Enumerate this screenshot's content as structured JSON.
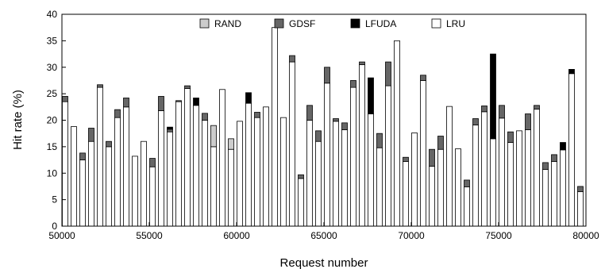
{
  "chart_data": {
    "type": "bar",
    "stacked": true,
    "xlabel": "Request number",
    "ylabel": "Hit rate (%)",
    "xlim": [
      50000,
      80000
    ],
    "ylim": [
      0,
      40
    ],
    "xticks": [
      50000,
      55000,
      60000,
      65000,
      70000,
      75000,
      80000
    ],
    "yticks": [
      0,
      5,
      10,
      15,
      20,
      25,
      30,
      35,
      40
    ],
    "grid": false,
    "legend_position": "top-center",
    "legend": [
      {
        "name": "RAND",
        "color": "#cccccc"
      },
      {
        "name": "GDSF",
        "color": "#666666"
      },
      {
        "name": "LFUDA",
        "color": "#000000"
      },
      {
        "name": "LRU",
        "color": "#ffffff"
      }
    ],
    "bars": [
      {
        "x": 50000,
        "values": [
          {
            "series": "LRU",
            "value": 23.5
          },
          {
            "series": "GDSF",
            "value": 24.5
          }
        ]
      },
      {
        "x": 50500,
        "values": [
          {
            "series": "LRU",
            "value": 18.8
          }
        ]
      },
      {
        "x": 51000,
        "values": [
          {
            "series": "LRU",
            "value": 12.5
          },
          {
            "series": "GDSF",
            "value": 13.8
          }
        ]
      },
      {
        "x": 51500,
        "values": [
          {
            "series": "LRU",
            "value": 16.0
          },
          {
            "series": "GDSF",
            "value": 18.5
          }
        ]
      },
      {
        "x": 52000,
        "values": [
          {
            "series": "LRU",
            "value": 26.2
          },
          {
            "series": "GDSF",
            "value": 26.7
          }
        ]
      },
      {
        "x": 52500,
        "values": [
          {
            "series": "LRU",
            "value": 15.0
          },
          {
            "series": "GDSF",
            "value": 16.0
          }
        ]
      },
      {
        "x": 53000,
        "values": [
          {
            "series": "LRU",
            "value": 20.5
          },
          {
            "series": "GDSF",
            "value": 22.0
          }
        ]
      },
      {
        "x": 53500,
        "values": [
          {
            "series": "LRU",
            "value": 22.5
          },
          {
            "series": "GDSF",
            "value": 24.2
          }
        ]
      },
      {
        "x": 54000,
        "values": [
          {
            "series": "LRU",
            "value": 13.2
          }
        ]
      },
      {
        "x": 54500,
        "values": [
          {
            "series": "LRU",
            "value": 16.0
          }
        ]
      },
      {
        "x": 55000,
        "values": [
          {
            "series": "LRU",
            "value": 11.2
          },
          {
            "series": "GDSF",
            "value": 12.8
          }
        ]
      },
      {
        "x": 55500,
        "values": [
          {
            "series": "LRU",
            "value": 21.8
          },
          {
            "series": "GDSF",
            "value": 24.5
          }
        ]
      },
      {
        "x": 56000,
        "values": [
          {
            "series": "LRU",
            "value": 17.8
          },
          {
            "series": "GDSF",
            "value": 18.3
          },
          {
            "series": "LFUDA",
            "value": 18.7
          }
        ]
      },
      {
        "x": 56500,
        "values": [
          {
            "series": "LRU",
            "value": 23.5
          },
          {
            "series": "GDSF",
            "value": 23.7
          }
        ]
      },
      {
        "x": 57000,
        "values": [
          {
            "series": "LRU",
            "value": 26.0
          },
          {
            "series": "GDSF",
            "value": 26.5
          }
        ]
      },
      {
        "x": 57500,
        "values": [
          {
            "series": "LRU",
            "value": 22.8
          },
          {
            "series": "LFUDA",
            "value": 24.2
          }
        ]
      },
      {
        "x": 58000,
        "values": [
          {
            "series": "LRU",
            "value": 20.0
          },
          {
            "series": "GDSF",
            "value": 21.3
          }
        ]
      },
      {
        "x": 58500,
        "values": [
          {
            "series": "LRU",
            "value": 15.0
          },
          {
            "series": "RAND",
            "value": 19.0
          }
        ]
      },
      {
        "x": 59000,
        "values": [
          {
            "series": "LRU",
            "value": 25.8
          }
        ]
      },
      {
        "x": 59500,
        "values": [
          {
            "series": "LRU",
            "value": 14.5
          },
          {
            "series": "RAND",
            "value": 16.5
          }
        ]
      },
      {
        "x": 60000,
        "values": [
          {
            "series": "LRU",
            "value": 19.8
          }
        ]
      },
      {
        "x": 60500,
        "values": [
          {
            "series": "LRU",
            "value": 23.2
          },
          {
            "series": "LFUDA",
            "value": 25.2
          }
        ]
      },
      {
        "x": 61000,
        "values": [
          {
            "series": "LRU",
            "value": 20.5
          },
          {
            "series": "GDSF",
            "value": 21.5
          }
        ]
      },
      {
        "x": 61500,
        "values": [
          {
            "series": "LRU",
            "value": 22.5
          }
        ]
      },
      {
        "x": 62000,
        "values": [
          {
            "series": "LRU",
            "value": 37.5
          }
        ]
      },
      {
        "x": 62500,
        "values": [
          {
            "series": "LRU",
            "value": 20.5
          }
        ]
      },
      {
        "x": 63000,
        "values": [
          {
            "series": "LRU",
            "value": 31.0
          },
          {
            "series": "GDSF",
            "value": 32.2
          }
        ]
      },
      {
        "x": 63500,
        "values": [
          {
            "series": "LRU",
            "value": 9.0
          },
          {
            "series": "GDSF",
            "value": 9.7
          }
        ]
      },
      {
        "x": 64000,
        "values": [
          {
            "series": "LRU",
            "value": 20.0
          },
          {
            "series": "GDSF",
            "value": 22.8
          }
        ]
      },
      {
        "x": 64500,
        "values": [
          {
            "series": "LRU",
            "value": 16.0
          },
          {
            "series": "GDSF",
            "value": 18.0
          }
        ]
      },
      {
        "x": 65000,
        "values": [
          {
            "series": "LRU",
            "value": 27.0
          },
          {
            "series": "GDSF",
            "value": 30.0
          }
        ]
      },
      {
        "x": 65500,
        "values": [
          {
            "series": "LRU",
            "value": 19.8
          },
          {
            "series": "GDSF",
            "value": 20.3
          }
        ]
      },
      {
        "x": 66000,
        "values": [
          {
            "series": "LRU",
            "value": 18.2
          },
          {
            "series": "GDSF",
            "value": 19.5
          }
        ]
      },
      {
        "x": 66500,
        "values": [
          {
            "series": "LRU",
            "value": 26.2
          },
          {
            "series": "GDSF",
            "value": 27.5
          }
        ]
      },
      {
        "x": 67000,
        "values": [
          {
            "series": "LRU",
            "value": 30.5
          },
          {
            "series": "GDSF",
            "value": 31.0
          }
        ]
      },
      {
        "x": 67500,
        "values": [
          {
            "series": "LRU",
            "value": 21.2
          },
          {
            "series": "LFUDA",
            "value": 28.0
          }
        ]
      },
      {
        "x": 68000,
        "values": [
          {
            "series": "LRU",
            "value": 14.8
          },
          {
            "series": "GDSF",
            "value": 17.5
          }
        ]
      },
      {
        "x": 68500,
        "values": [
          {
            "series": "LRU",
            "value": 26.5
          },
          {
            "series": "GDSF",
            "value": 31.0
          }
        ]
      },
      {
        "x": 69000,
        "values": [
          {
            "series": "LRU",
            "value": 35.0
          }
        ]
      },
      {
        "x": 69500,
        "values": [
          {
            "series": "LRU",
            "value": 12.2
          },
          {
            "series": "GDSF",
            "value": 13.0
          }
        ]
      },
      {
        "x": 70000,
        "values": [
          {
            "series": "LRU",
            "value": 17.6
          }
        ]
      },
      {
        "x": 70500,
        "values": [
          {
            "series": "LRU",
            "value": 27.5
          },
          {
            "series": "GDSF",
            "value": 28.5
          }
        ]
      },
      {
        "x": 71000,
        "values": [
          {
            "series": "LRU",
            "value": 11.3
          },
          {
            "series": "GDSF",
            "value": 14.5
          }
        ]
      },
      {
        "x": 71500,
        "values": [
          {
            "series": "LRU",
            "value": 14.5
          },
          {
            "series": "GDSF",
            "value": 17.0
          }
        ]
      },
      {
        "x": 72000,
        "values": [
          {
            "series": "LRU",
            "value": 22.6
          }
        ]
      },
      {
        "x": 72500,
        "values": [
          {
            "series": "LRU",
            "value": 14.6
          }
        ]
      },
      {
        "x": 73000,
        "values": [
          {
            "series": "LRU",
            "value": 7.4
          },
          {
            "series": "GDSF",
            "value": 8.7
          }
        ]
      },
      {
        "x": 73500,
        "values": [
          {
            "series": "LRU",
            "value": 19.1
          },
          {
            "series": "GDSF",
            "value": 20.3
          }
        ]
      },
      {
        "x": 74000,
        "values": [
          {
            "series": "LRU",
            "value": 21.6
          },
          {
            "series": "GDSF",
            "value": 22.7
          }
        ]
      },
      {
        "x": 74500,
        "values": [
          {
            "series": "LRU",
            "value": 16.5
          },
          {
            "series": "LFUDA",
            "value": 32.5
          }
        ]
      },
      {
        "x": 75000,
        "values": [
          {
            "series": "LRU",
            "value": 20.4
          },
          {
            "series": "GDSF",
            "value": 22.8
          }
        ]
      },
      {
        "x": 75500,
        "values": [
          {
            "series": "LRU",
            "value": 15.8
          },
          {
            "series": "GDSF",
            "value": 17.8
          }
        ]
      },
      {
        "x": 76000,
        "values": [
          {
            "series": "LRU",
            "value": 18.0
          }
        ]
      },
      {
        "x": 76500,
        "values": [
          {
            "series": "LRU",
            "value": 18.2
          },
          {
            "series": "GDSF",
            "value": 21.2
          }
        ]
      },
      {
        "x": 77000,
        "values": [
          {
            "series": "LRU",
            "value": 22.1
          },
          {
            "series": "GDSF",
            "value": 22.8
          }
        ]
      },
      {
        "x": 77500,
        "values": [
          {
            "series": "LRU",
            "value": 10.7
          },
          {
            "series": "GDSF",
            "value": 12.0
          }
        ]
      },
      {
        "x": 78000,
        "values": [
          {
            "series": "LRU",
            "value": 12.2
          },
          {
            "series": "GDSF",
            "value": 13.5
          }
        ]
      },
      {
        "x": 78500,
        "values": [
          {
            "series": "LRU",
            "value": 14.4
          },
          {
            "series": "LFUDA",
            "value": 15.8
          }
        ]
      },
      {
        "x": 79000,
        "values": [
          {
            "series": "LRU",
            "value": 28.8
          },
          {
            "series": "LFUDA",
            "value": 29.6
          }
        ]
      },
      {
        "x": 79500,
        "values": [
          {
            "series": "LRU",
            "value": 6.5
          },
          {
            "series": "GDSF",
            "value": 7.5
          }
        ]
      }
    ]
  }
}
